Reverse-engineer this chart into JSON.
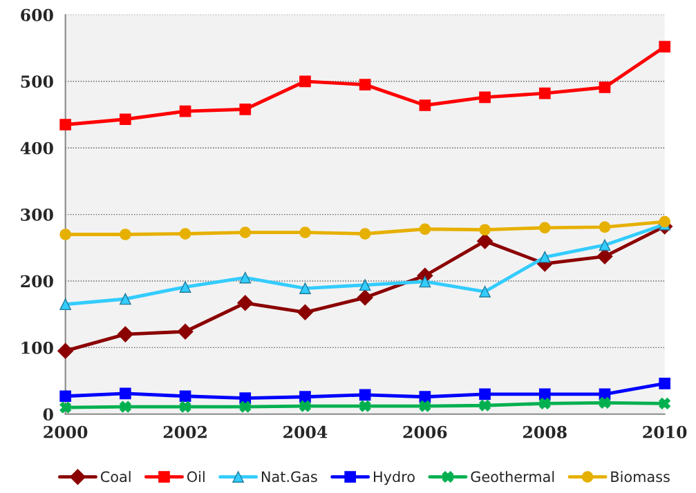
{
  "chart_data": {
    "type": "line",
    "x": [
      2000,
      2001,
      2002,
      2003,
      2004,
      2005,
      2006,
      2007,
      2008,
      2009,
      2010
    ],
    "series": [
      {
        "name": "Coal",
        "color": "#8b0000",
        "marker": "diamond",
        "values": [
          95,
          120,
          124,
          167,
          153,
          175,
          208,
          260,
          226,
          237,
          282
        ]
      },
      {
        "name": "Oil",
        "color": "#ff0000",
        "marker": "square",
        "values": [
          435,
          443,
          455,
          458,
          500,
          495,
          464,
          476,
          482,
          491,
          552
        ]
      },
      {
        "name": "Nat.Gas",
        "color": "#33ccff",
        "marker": "triangle",
        "values": [
          165,
          173,
          191,
          205,
          189,
          194,
          199,
          184,
          236,
          254,
          285
        ]
      },
      {
        "name": "Hydro",
        "color": "#0000ff",
        "marker": "square",
        "values": [
          27,
          31,
          27,
          24,
          26,
          29,
          26,
          30,
          30,
          30,
          46
        ]
      },
      {
        "name": "Geothermal",
        "color": "#00b050",
        "marker": "cross",
        "values": [
          10,
          11,
          11,
          11,
          12,
          12,
          12,
          13,
          16,
          17,
          16
        ]
      },
      {
        "name": "Biomass",
        "color": "#e6b000",
        "marker": "circle",
        "values": [
          270,
          270,
          271,
          273,
          273,
          271,
          278,
          277,
          280,
          281,
          289
        ]
      }
    ],
    "xlim": [
      2000,
      2010
    ],
    "xticks": [
      2000,
      2002,
      2004,
      2006,
      2008,
      2010
    ],
    "ylim": [
      0,
      600
    ],
    "yticks": [
      0,
      100,
      200,
      300,
      400,
      500,
      600
    ],
    "grid": "y",
    "legend": "bottom",
    "line_style": "solid"
  }
}
